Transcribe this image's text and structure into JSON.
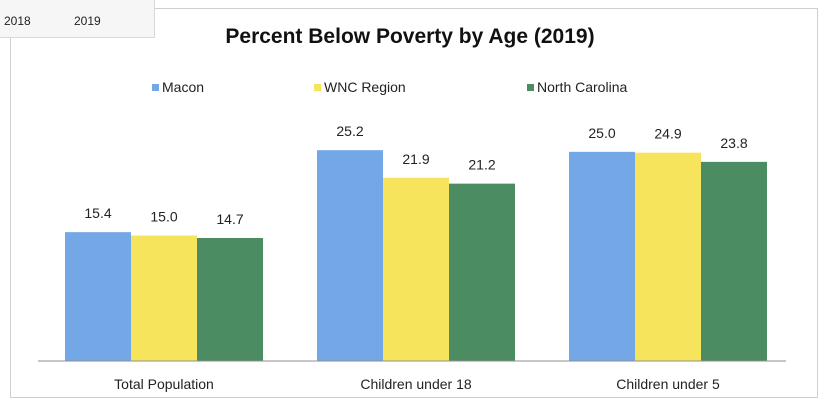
{
  "year_tabs": [
    "2018",
    "2019"
  ],
  "chart_data": {
    "type": "bar",
    "title": "Percent Below Poverty by Age (2019)",
    "categories": [
      "Total Population",
      "Children under 18",
      "Children under 5"
    ],
    "series": [
      {
        "name": "Macon",
        "values": [
          15.4,
          25.2,
          25.0
        ],
        "color": "#74a7e6"
      },
      {
        "name": "WNC Region",
        "values": [
          15.0,
          21.9,
          24.9
        ],
        "color": "#f6e45d"
      },
      {
        "name": "North Carolina",
        "values": [
          14.7,
          21.2,
          23.8
        ],
        "color": "#4c8c62"
      }
    ],
    "value_labels": [
      [
        "15.4",
        "15.0",
        "14.7"
      ],
      [
        "25.2",
        "21.9",
        "21.2"
      ],
      [
        "25.0",
        "24.9",
        "23.8"
      ]
    ],
    "ylim": [
      0,
      30
    ],
    "legend_position": "top",
    "grid": false,
    "xlabel": "",
    "ylabel": ""
  }
}
